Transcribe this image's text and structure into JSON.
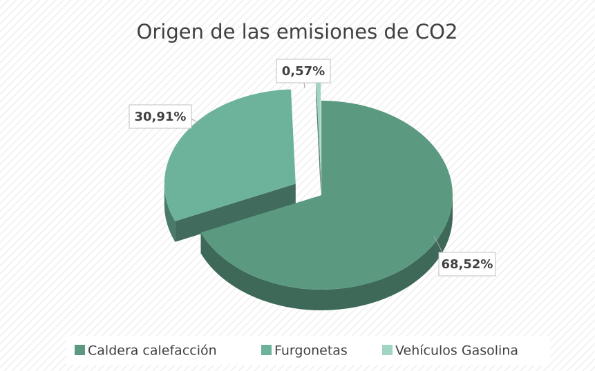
{
  "chart_data": {
    "type": "pie",
    "title": "Origen de las emisiones de CO2",
    "categories": [
      "Caldera calefacción",
      "Furgonetas",
      "Vehículos Gasolina"
    ],
    "values": [
      68.52,
      30.91,
      0.57
    ],
    "value_labels": [
      "68,52%",
      "30,91%",
      "0,57%"
    ],
    "colors": [
      "#5b9a81",
      "#6db39b",
      "#a0d5c1"
    ],
    "legend": "bottom"
  }
}
